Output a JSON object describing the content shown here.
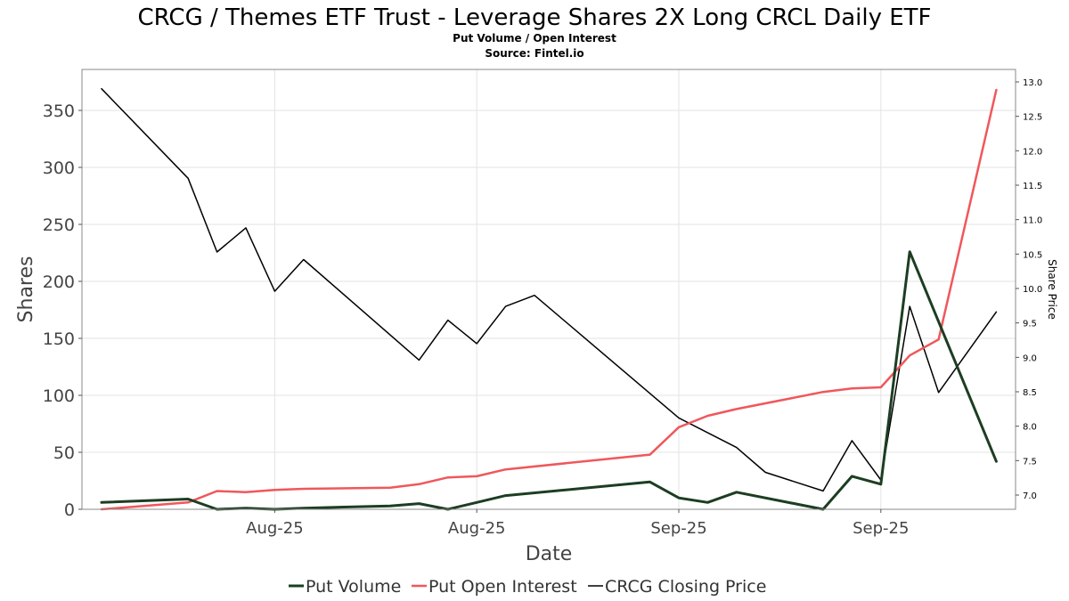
{
  "header": {
    "title": "CRCG / Themes ETF Trust - Leverage Shares 2X Long CRCL Daily ETF",
    "subtitle": "Put Volume / Open Interest",
    "source": "Source: Fintel.io"
  },
  "chart_data": {
    "type": "line",
    "xlabel": "Date",
    "ylabel": "Shares",
    "y2label": "Share Price",
    "x_tick_labels": [
      "Aug-25",
      "Aug-25",
      "Sep-25",
      "Sep-25"
    ],
    "x_tick_days": [
      16,
      23,
      30,
      37
    ],
    "ylim": [
      0,
      380
    ],
    "y_ticks": [
      0,
      50,
      100,
      150,
      200,
      250,
      300,
      350
    ],
    "y2lim": [
      6.8,
      13.2
    ],
    "y2_ticks": [
      "7.0",
      "7.5",
      "8.0",
      "8.5",
      "9.0",
      "9.5",
      "10.0",
      "10.5",
      "11.0",
      "11.5",
      "12.0",
      "12.5",
      "13.0"
    ],
    "grid": true,
    "legend_position": "bottom",
    "x_days": [
      10,
      13,
      14,
      15,
      16,
      17,
      20,
      21,
      22,
      23,
      24,
      29,
      30,
      31,
      32,
      35,
      36,
      37,
      38,
      41
    ],
    "series": [
      {
        "name": "Put Volume",
        "axis": "left",
        "color": "#1d3d22",
        "width": 3,
        "values": [
          6,
          9,
          0,
          1,
          0,
          1,
          3,
          5,
          0,
          6,
          12,
          24,
          10,
          6,
          15,
          0,
          29,
          22,
          226,
          42
        ]
      },
      {
        "name": "Put Open Interest",
        "axis": "left",
        "color": "#f0575b",
        "width": 2.5,
        "values": [
          0,
          6,
          16,
          15,
          17,
          18,
          19,
          22,
          28,
          29,
          35,
          48,
          72,
          82,
          88,
          103,
          106,
          107,
          135,
          149,
          368
        ],
        "x_days": [
          10,
          13,
          14,
          15,
          16,
          17,
          20,
          21,
          22,
          23,
          24,
          29,
          30,
          31,
          32,
          35,
          36,
          37,
          38,
          39,
          41
        ]
      },
      {
        "name": "CRCG Closing Price",
        "axis": "right",
        "color": "#000000",
        "width": 1.5,
        "values": [
          12.9,
          11.6,
          10.53,
          10.88,
          9.96,
          10.42,
          8.96,
          9.54,
          9.2,
          9.74,
          9.9,
          8.12,
          7.69,
          7.33,
          7.06,
          7.79,
          7.22,
          9.74,
          8.49,
          9.66
        ],
        "x_days": [
          10,
          13,
          14,
          15,
          16,
          17,
          21,
          22,
          23,
          24,
          25,
          30,
          32,
          33,
          35,
          36,
          37,
          38,
          39,
          41
        ]
      }
    ]
  }
}
